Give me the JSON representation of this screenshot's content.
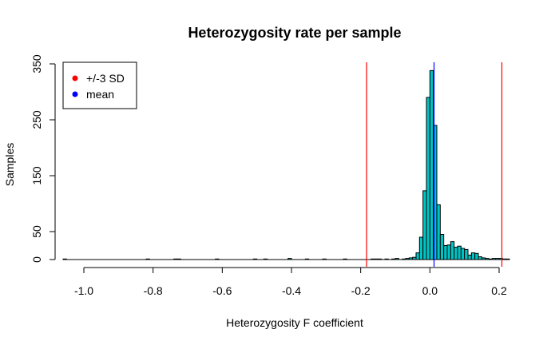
{
  "chart_data": {
    "type": "bar",
    "title": "Heterozygosity rate per sample",
    "xlabel": "Heterozygosity F coefficient",
    "ylabel": "Samples",
    "xlim": [
      -1.06,
      0.23
    ],
    "ylim": [
      0,
      350
    ],
    "x_ticks": [
      -1.0,
      -0.8,
      -0.6,
      -0.4,
      -0.2,
      0.0,
      0.2
    ],
    "x_tick_labels": [
      "-1.0",
      "-0.8",
      "-0.6",
      "-0.4",
      "-0.2",
      "0.0",
      "0.2"
    ],
    "y_ticks": [
      0,
      50,
      150,
      250,
      350
    ],
    "y_tick_labels": [
      "0",
      "50",
      "150",
      "250",
      "350"
    ],
    "bar_color": "#00c4c4",
    "bin_width": 0.01,
    "bins": [
      {
        "x0": -1.06,
        "count": 1
      },
      {
        "x0": -0.82,
        "count": 1
      },
      {
        "x0": -0.74,
        "count": 1
      },
      {
        "x0": -0.73,
        "count": 1
      },
      {
        "x0": -0.62,
        "count": 1
      },
      {
        "x0": -0.51,
        "count": 1
      },
      {
        "x0": -0.48,
        "count": 1
      },
      {
        "x0": -0.41,
        "count": 2
      },
      {
        "x0": -0.36,
        "count": 1
      },
      {
        "x0": -0.31,
        "count": 1
      },
      {
        "x0": -0.25,
        "count": 1
      },
      {
        "x0": -0.17,
        "count": 1
      },
      {
        "x0": -0.16,
        "count": 1
      },
      {
        "x0": -0.15,
        "count": 1
      },
      {
        "x0": -0.13,
        "count": 1
      },
      {
        "x0": -0.11,
        "count": 1
      },
      {
        "x0": -0.1,
        "count": 2
      },
      {
        "x0": -0.08,
        "count": 1
      },
      {
        "x0": -0.07,
        "count": 2
      },
      {
        "x0": -0.06,
        "count": 3
      },
      {
        "x0": -0.05,
        "count": 4
      },
      {
        "x0": -0.04,
        "count": 12
      },
      {
        "x0": -0.03,
        "count": 40
      },
      {
        "x0": -0.02,
        "count": 123
      },
      {
        "x0": -0.01,
        "count": 290
      },
      {
        "x0": 0.0,
        "count": 338
      },
      {
        "x0": 0.01,
        "count": 240
      },
      {
        "x0": 0.02,
        "count": 98
      },
      {
        "x0": 0.03,
        "count": 45
      },
      {
        "x0": 0.04,
        "count": 25
      },
      {
        "x0": 0.05,
        "count": 26
      },
      {
        "x0": 0.06,
        "count": 32
      },
      {
        "x0": 0.07,
        "count": 22
      },
      {
        "x0": 0.08,
        "count": 24
      },
      {
        "x0": 0.09,
        "count": 20
      },
      {
        "x0": 0.1,
        "count": 18
      },
      {
        "x0": 0.11,
        "count": 8
      },
      {
        "x0": 0.12,
        "count": 12
      },
      {
        "x0": 0.13,
        "count": 11
      },
      {
        "x0": 0.14,
        "count": 5
      },
      {
        "x0": 0.15,
        "count": 3
      },
      {
        "x0": 0.16,
        "count": 2
      },
      {
        "x0": 0.17,
        "count": 1
      },
      {
        "x0": 0.18,
        "count": 2
      },
      {
        "x0": 0.19,
        "count": 2
      },
      {
        "x0": 0.2,
        "count": 2
      },
      {
        "x0": 0.21,
        "count": 1
      },
      {
        "x0": 0.22,
        "count": 1
      }
    ],
    "vlines": [
      {
        "name": "-3 SD",
        "x": -0.183,
        "color": "#ff0000"
      },
      {
        "name": "+3 SD",
        "x": 0.208,
        "color": "#ff0000"
      },
      {
        "name": "mean",
        "x": 0.012,
        "color": "#0000ff"
      }
    ],
    "legend": {
      "position": "top-left",
      "items": [
        {
          "label": "+/-3 SD",
          "color": "#ff0000"
        },
        {
          "label": "mean",
          "color": "#0000ff"
        }
      ]
    }
  }
}
